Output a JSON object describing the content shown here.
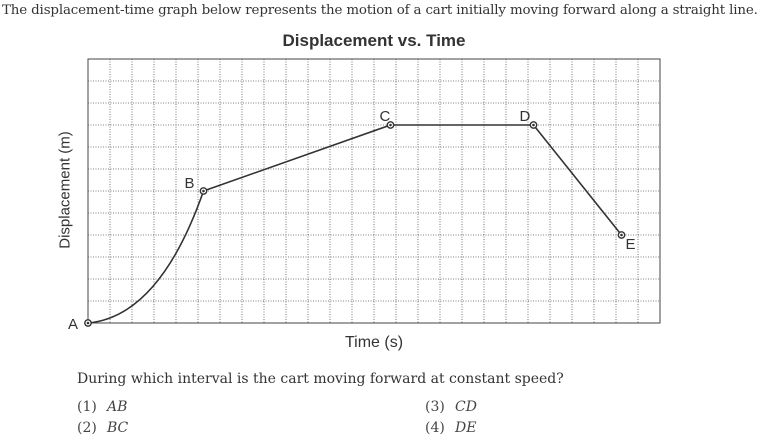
{
  "intro": "The displacement-time graph below represents the motion of a cart initially moving forward along a straight line.",
  "chart_data": {
    "type": "line",
    "title": "Displacement vs. Time",
    "xlabel": "Time (s)",
    "ylabel": "Displacement (m)",
    "grid": true,
    "points": [
      {
        "label": "A",
        "t": 0,
        "d": 0
      },
      {
        "label": "B",
        "t": 5.25,
        "d": 6
      },
      {
        "label": "C",
        "t": 13.75,
        "d": 9
      },
      {
        "label": "D",
        "t": 20.25,
        "d": 9
      },
      {
        "label": "E",
        "t": 24.25,
        "d": 4
      }
    ],
    "segments": [
      {
        "from": "A",
        "to": "B",
        "shape": "curve"
      },
      {
        "from": "B",
        "to": "C",
        "shape": "line"
      },
      {
        "from": "C",
        "to": "D",
        "shape": "line"
      },
      {
        "from": "D",
        "to": "E",
        "shape": "line"
      }
    ]
  },
  "question": {
    "prompt": "During which interval is the cart moving forward at constant speed?",
    "choices": [
      {
        "num": "(1)",
        "text": "AB"
      },
      {
        "num": "(2)",
        "text": "BC"
      },
      {
        "num": "(3)",
        "text": "CD"
      },
      {
        "num": "(4)",
        "text": "DE"
      }
    ]
  }
}
